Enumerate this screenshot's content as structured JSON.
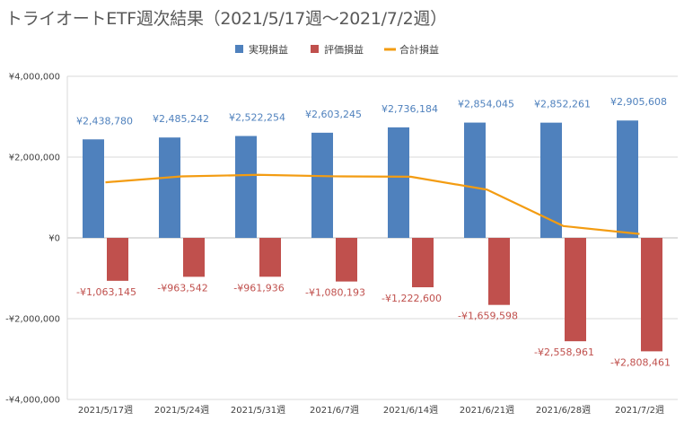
{
  "chart_data": {
    "type": "bar",
    "title": "トライオートETF週次結果（2021/5/17週～2021/7/2週）",
    "categories": [
      "2021/5/17週",
      "2021/5/24週",
      "2021/5/31週",
      "2021/6/7週",
      "2021/6/14週",
      "2021/6/21週",
      "2021/6/28週",
      "2021/7/2週"
    ],
    "series": [
      {
        "name": "実現損益",
        "kind": "bar",
        "color": "#4f81bd",
        "values": [
          2438780,
          2485242,
          2522254,
          2603245,
          2736184,
          2854045,
          2852261,
          2905608
        ],
        "labels": [
          "¥2,438,780",
          "¥2,485,242",
          "¥2,522,254",
          "¥2,603,245",
          "¥2,736,184",
          "¥2,854,045",
          "¥2,852,261",
          "¥2,905,608"
        ]
      },
      {
        "name": "評価損益",
        "kind": "bar",
        "color": "#c0504d",
        "values": [
          -1063145,
          -963542,
          -961936,
          -1080193,
          -1222600,
          -1659598,
          -2558961,
          -2808461
        ],
        "labels": [
          "-¥1,063,145",
          "-¥963,542",
          "-¥961,936",
          "-¥1,080,193",
          "-¥1,222,600",
          "-¥1,659,598",
          "-¥2,558,961",
          "-¥2,808,461"
        ]
      },
      {
        "name": "合計損益",
        "kind": "line",
        "color": "#f39c12",
        "values": [
          1375635,
          1521700,
          1560318,
          1523052,
          1513584,
          1194447,
          293300,
          97147
        ]
      }
    ],
    "ylim": [
      -4000000,
      4000000
    ],
    "yticks": [
      4000000,
      2000000,
      0,
      -2000000,
      -4000000
    ],
    "ytick_labels": [
      "¥4,000,000",
      "¥2,000,000",
      "¥0",
      "-¥2,000,000",
      "-¥4,000,000"
    ],
    "grid": true,
    "legend": "top"
  }
}
